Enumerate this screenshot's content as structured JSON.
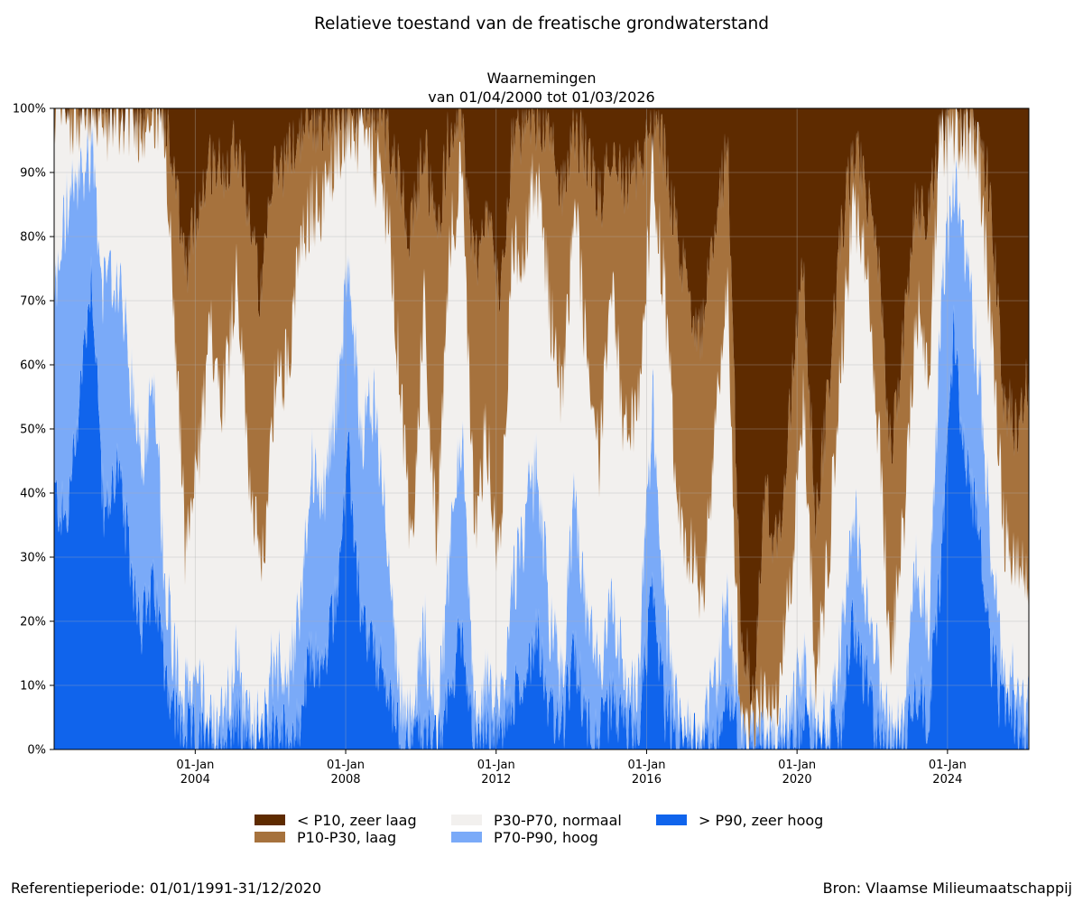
{
  "header": {
    "title": "Relatieve toestand van de freatische grondwaterstand",
    "subtitle_line1": "Waarnemingen",
    "subtitle_line2": "van 01/04/2000 tot 01/03/2026"
  },
  "footer": {
    "reference": "Referentieperiode: 01/01/1991-31/12/2020",
    "source": "Bron: Vlaamse Milieumaatschappij"
  },
  "chart_data": {
    "type": "area",
    "x_range": [
      "2000-04-01",
      "2026-03-01"
    ],
    "ylim": [
      0,
      100
    ],
    "y_ticks": [
      "0%",
      "10%",
      "20%",
      "30%",
      "40%",
      "50%",
      "60%",
      "70%",
      "80%",
      "90%",
      "100%"
    ],
    "x_ticks": [
      {
        "date": "2004-01-01",
        "line1": "01-Jan",
        "line2": "2004"
      },
      {
        "date": "2008-01-01",
        "line1": "01-Jan",
        "line2": "2008"
      },
      {
        "date": "2012-01-01",
        "line1": "01-Jan",
        "line2": "2012"
      },
      {
        "date": "2016-01-01",
        "line1": "01-Jan",
        "line2": "2016"
      },
      {
        "date": "2020-01-01",
        "line1": "01-Jan",
        "line2": "2020"
      },
      {
        "date": "2024-01-01",
        "line1": "01-Jan",
        "line2": "2024"
      }
    ],
    "grid": true,
    "legend_position": "bottom",
    "colors": {
      "zeer_laag": "#5e2b00",
      "laag": "#a6723d",
      "normaal": "#f2f0ee",
      "hoog": "#7aaaf8",
      "zeer_hoog": "#1064ec"
    },
    "legend": [
      {
        "key": "zeer_laag",
        "label": "< P10, zeer laag"
      },
      {
        "key": "laag",
        "label": "P10-P30, laag"
      },
      {
        "key": "normaal",
        "label": "P30-P70, normaal"
      },
      {
        "key": "hoog",
        "label": "P70-P90, hoog"
      },
      {
        "key": "zeer_hoog",
        "label": "> P90, zeer hoog"
      }
    ],
    "stack_order": [
      "zeer_hoog",
      "hoog",
      "normaal",
      "laag",
      "zeer_laag"
    ],
    "series_boundaries_note": "cumulative percentages from bottom: hi = top of '> P90', h = top of 'P70-P90', n = top of 'P30-P70', l = top of 'P10-P30'",
    "points": [
      {
        "date": "2000-04-01",
        "hi": 40,
        "h": 70,
        "n": 99,
        "l": 100
      },
      {
        "date": "2000-08-01",
        "hi": 35,
        "h": 85,
        "n": 99,
        "l": 100
      },
      {
        "date": "2000-12-01",
        "hi": 55,
        "h": 88,
        "n": 100,
        "l": 100
      },
      {
        "date": "2001-04-01",
        "hi": 75,
        "h": 95,
        "n": 100,
        "l": 100
      },
      {
        "date": "2001-08-01",
        "hi": 35,
        "h": 70,
        "n": 98,
        "l": 100
      },
      {
        "date": "2001-12-01",
        "hi": 45,
        "h": 75,
        "n": 99,
        "l": 100
      },
      {
        "date": "2002-04-01",
        "hi": 30,
        "h": 60,
        "n": 99,
        "l": 100
      },
      {
        "date": "2002-08-01",
        "hi": 20,
        "h": 45,
        "n": 98,
        "l": 100
      },
      {
        "date": "2002-12-01",
        "hi": 25,
        "h": 60,
        "n": 99,
        "l": 100
      },
      {
        "date": "2003-03-01",
        "hi": 15,
        "h": 30,
        "n": 95,
        "l": 99
      },
      {
        "date": "2003-06-01",
        "hi": 6,
        "h": 16,
        "n": 72,
        "l": 90
      },
      {
        "date": "2003-10-01",
        "hi": 2,
        "h": 8,
        "n": 30,
        "l": 75
      },
      {
        "date": "2004-02-01",
        "hi": 2,
        "h": 10,
        "n": 45,
        "l": 85
      },
      {
        "date": "2004-06-01",
        "hi": 1,
        "h": 5,
        "n": 65,
        "l": 92
      },
      {
        "date": "2004-10-01",
        "hi": 1,
        "h": 4,
        "n": 55,
        "l": 90
      },
      {
        "date": "2005-02-01",
        "hi": 5,
        "h": 15,
        "n": 75,
        "l": 96
      },
      {
        "date": "2005-06-01",
        "hi": 1,
        "h": 4,
        "n": 45,
        "l": 85
      },
      {
        "date": "2005-10-01",
        "hi": 1,
        "h": 3,
        "n": 25,
        "l": 70
      },
      {
        "date": "2006-02-01",
        "hi": 4,
        "h": 15,
        "n": 55,
        "l": 90
      },
      {
        "date": "2006-06-01",
        "hi": 2,
        "h": 10,
        "n": 60,
        "l": 92
      },
      {
        "date": "2006-10-01",
        "hi": 3,
        "h": 20,
        "n": 75,
        "l": 96
      },
      {
        "date": "2007-02-01",
        "hi": 15,
        "h": 45,
        "n": 85,
        "l": 98
      },
      {
        "date": "2007-06-01",
        "hi": 12,
        "h": 40,
        "n": 85,
        "l": 99
      },
      {
        "date": "2007-10-01",
        "hi": 25,
        "h": 55,
        "n": 95,
        "l": 100
      },
      {
        "date": "2008-02-01",
        "hi": 45,
        "h": 75,
        "n": 97,
        "l": 100
      },
      {
        "date": "2008-06-01",
        "hi": 20,
        "h": 50,
        "n": 95,
        "l": 99
      },
      {
        "date": "2008-10-01",
        "hi": 15,
        "h": 55,
        "n": 92,
        "l": 99
      },
      {
        "date": "2009-02-01",
        "hi": 10,
        "h": 35,
        "n": 85,
        "l": 97
      },
      {
        "date": "2009-06-01",
        "hi": 2,
        "h": 10,
        "n": 60,
        "l": 90
      },
      {
        "date": "2009-10-01",
        "hi": 1,
        "h": 3,
        "n": 30,
        "l": 80
      },
      {
        "date": "2010-02-01",
        "hi": 4,
        "h": 20,
        "n": 70,
        "l": 95
      },
      {
        "date": "2010-06-01",
        "hi": 0,
        "h": 1,
        "n": 30,
        "l": 80
      },
      {
        "date": "2010-10-01",
        "hi": 8,
        "h": 30,
        "n": 80,
        "l": 96
      },
      {
        "date": "2011-02-01",
        "hi": 20,
        "h": 50,
        "n": 90,
        "l": 98
      },
      {
        "date": "2011-06-01",
        "hi": 1,
        "h": 5,
        "n": 35,
        "l": 75
      },
      {
        "date": "2011-10-01",
        "hi": 3,
        "h": 10,
        "n": 50,
        "l": 85
      },
      {
        "date": "2012-02-01",
        "hi": 1,
        "h": 5,
        "n": 30,
        "l": 70
      },
      {
        "date": "2012-06-01",
        "hi": 8,
        "h": 25,
        "n": 75,
        "l": 95
      },
      {
        "date": "2012-10-01",
        "hi": 10,
        "h": 35,
        "n": 80,
        "l": 96
      },
      {
        "date": "2013-02-01",
        "hi": 20,
        "h": 45,
        "n": 90,
        "l": 99
      },
      {
        "date": "2013-06-01",
        "hi": 6,
        "h": 20,
        "n": 70,
        "l": 95
      },
      {
        "date": "2013-10-01",
        "hi": 3,
        "h": 12,
        "n": 55,
        "l": 88
      },
      {
        "date": "2014-02-01",
        "hi": 15,
        "h": 40,
        "n": 85,
        "l": 97
      },
      {
        "date": "2014-06-01",
        "hi": 5,
        "h": 20,
        "n": 60,
        "l": 92
      },
      {
        "date": "2014-10-01",
        "hi": 2,
        "h": 10,
        "n": 45,
        "l": 85
      },
      {
        "date": "2015-02-01",
        "hi": 8,
        "h": 25,
        "n": 70,
        "l": 95
      },
      {
        "date": "2015-06-01",
        "hi": 3,
        "h": 10,
        "n": 50,
        "l": 88
      },
      {
        "date": "2015-10-01",
        "hi": 2,
        "h": 8,
        "n": 50,
        "l": 90
      },
      {
        "date": "2016-03-01",
        "hi": 25,
        "h": 55,
        "n": 90,
        "l": 98
      },
      {
        "date": "2016-07-01",
        "hi": 6,
        "h": 20,
        "n": 70,
        "l": 93
      },
      {
        "date": "2016-11-01",
        "hi": 1,
        "h": 3,
        "n": 35,
        "l": 78
      },
      {
        "date": "2017-03-01",
        "hi": 1,
        "h": 3,
        "n": 30,
        "l": 70
      },
      {
        "date": "2017-07-01",
        "hi": 0,
        "h": 1,
        "n": 25,
        "l": 65
      },
      {
        "date": "2017-11-01",
        "hi": 2,
        "h": 10,
        "n": 50,
        "l": 85
      },
      {
        "date": "2018-03-01",
        "hi": 8,
        "h": 25,
        "n": 70,
        "l": 93
      },
      {
        "date": "2018-07-01",
        "hi": 0,
        "h": 0,
        "n": 2,
        "l": 20
      },
      {
        "date": "2018-11-01",
        "hi": 0,
        "h": 0,
        "n": 1,
        "l": 8
      },
      {
        "date": "2019-03-01",
        "hi": 0,
        "h": 1,
        "n": 10,
        "l": 40
      },
      {
        "date": "2019-07-01",
        "hi": 0,
        "h": 1,
        "n": 8,
        "l": 30
      },
      {
        "date": "2019-11-01",
        "hi": 1,
        "h": 4,
        "n": 25,
        "l": 55
      },
      {
        "date": "2020-03-01",
        "hi": 5,
        "h": 15,
        "n": 55,
        "l": 75
      },
      {
        "date": "2020-07-01",
        "hi": 0,
        "h": 1,
        "n": 10,
        "l": 35
      },
      {
        "date": "2020-11-01",
        "hi": 1,
        "h": 5,
        "n": 30,
        "l": 55
      },
      {
        "date": "2021-03-01",
        "hi": 4,
        "h": 15,
        "n": 60,
        "l": 80
      },
      {
        "date": "2021-07-01",
        "hi": 20,
        "h": 40,
        "n": 85,
        "l": 93
      },
      {
        "date": "2021-11-01",
        "hi": 10,
        "h": 25,
        "n": 75,
        "l": 88
      },
      {
        "date": "2022-03-01",
        "hi": 3,
        "h": 12,
        "n": 50,
        "l": 75
      },
      {
        "date": "2022-07-01",
        "hi": 0,
        "h": 1,
        "n": 15,
        "l": 45
      },
      {
        "date": "2022-11-01",
        "hi": 1,
        "h": 5,
        "n": 35,
        "l": 65
      },
      {
        "date": "2023-03-01",
        "hi": 10,
        "h": 30,
        "n": 70,
        "l": 85
      },
      {
        "date": "2023-07-01",
        "hi": 5,
        "h": 20,
        "n": 60,
        "l": 82
      },
      {
        "date": "2023-11-01",
        "hi": 30,
        "h": 70,
        "n": 95,
        "l": 99
      },
      {
        "date": "2024-03-01",
        "hi": 65,
        "h": 90,
        "n": 98,
        "l": 99
      },
      {
        "date": "2024-07-01",
        "hi": 45,
        "h": 75,
        "n": 96,
        "l": 99
      },
      {
        "date": "2024-11-01",
        "hi": 35,
        "h": 60,
        "n": 92,
        "l": 98
      },
      {
        "date": "2025-03-01",
        "hi": 15,
        "h": 30,
        "n": 65,
        "l": 85
      },
      {
        "date": "2025-07-01",
        "hi": 5,
        "h": 12,
        "n": 35,
        "l": 55
      },
      {
        "date": "2025-11-01",
        "hi": 4,
        "h": 10,
        "n": 30,
        "l": 50
      },
      {
        "date": "2026-03-01",
        "hi": 2,
        "h": 8,
        "n": 25,
        "l": 60
      }
    ]
  }
}
